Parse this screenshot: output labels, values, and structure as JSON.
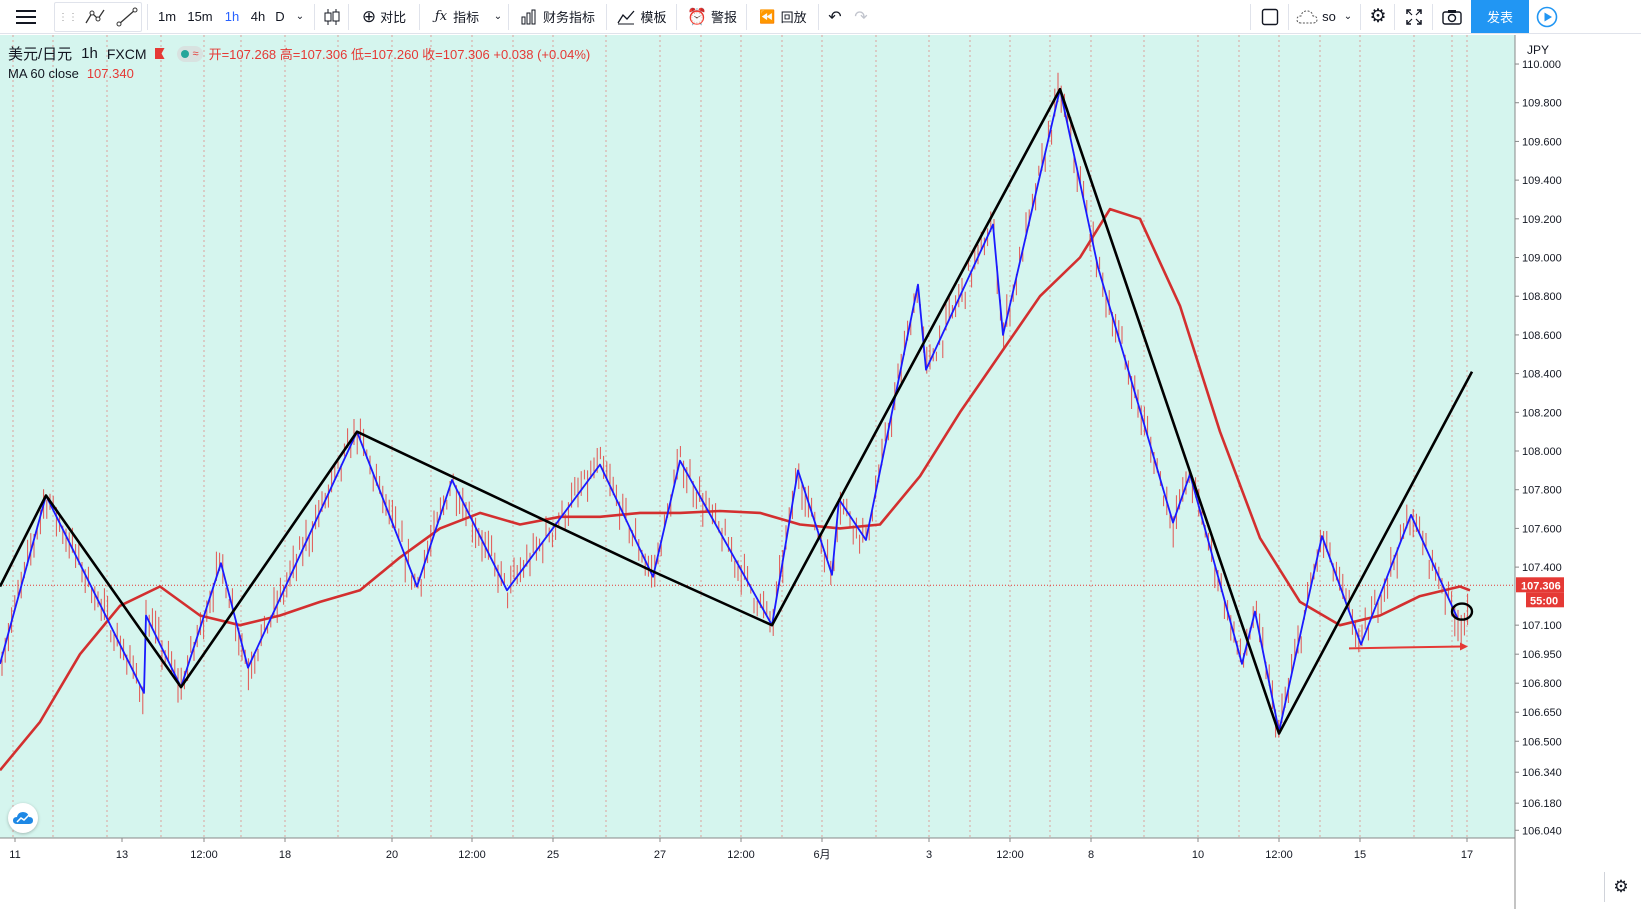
{
  "toolbar": {
    "intervals": [
      "1m",
      "15m",
      "1h",
      "4h",
      "D"
    ],
    "active_interval": "1h",
    "compare_label": "对比",
    "indicators_label": "指标",
    "financials_label": "财务指标",
    "templates_label": "模板",
    "alert_label": "警报",
    "replay_label": "回放",
    "layout_name": "so",
    "publish_label": "发表"
  },
  "legend": {
    "symbol": "美元/日元",
    "interval": "1h",
    "exchange": "FXCM",
    "ohlc_text": "开=107.268 高=107.306 低=107.260 收=107.306 +0.038 (+0.04%)",
    "ma_label": "MA 60 close",
    "ma_value": "107.340"
  },
  "colors": {
    "background": "#d5f5ee",
    "grid": "#e53935",
    "candle": "#e53935",
    "ma": "#d32f2f",
    "zigzag_minor": "#1a1aff",
    "zigzag_major": "#000000",
    "price_tag": "#e53935"
  },
  "chart_data": {
    "type": "line",
    "title": "",
    "currency": "JPY",
    "x_tick_labels": [
      "11",
      "13",
      "12:00",
      "18",
      "20",
      "12:00",
      "25",
      "27",
      "12:00",
      "6月",
      "3",
      "12:00",
      "8",
      "10",
      "12:00",
      "15",
      "17"
    ],
    "ylim": [
      106.0,
      110.15
    ],
    "y_ticks": [
      110.0,
      109.8,
      109.6,
      109.4,
      109.2,
      109.0,
      108.8,
      108.6,
      108.4,
      108.2,
      108.0,
      107.8,
      107.6,
      107.4,
      107.1,
      106.95,
      106.8,
      106.65,
      106.5,
      106.34,
      106.18,
      106.04
    ],
    "y_tick_labels": [
      "110.000",
      "109.800",
      "109.600",
      "109.400",
      "109.200",
      "109.000",
      "108.800",
      "108.600",
      "108.400",
      "108.200",
      "108.000",
      "107.800",
      "107.600",
      "107.400",
      "107.100",
      "106.950",
      "106.800",
      "106.650",
      "106.500",
      "106.340",
      "106.180",
      "106.040"
    ],
    "current_price": 107.306,
    "current_price_label": "107.306",
    "countdown_label": "55:00",
    "series": [
      {
        "name": "MA 60 close",
        "x": [
          0,
          40,
          80,
          120,
          160,
          200,
          240,
          280,
          320,
          360,
          400,
          440,
          480,
          520,
          560,
          600,
          640,
          680,
          720,
          760,
          800,
          840,
          880,
          920,
          960,
          1000,
          1040,
          1080,
          1110,
          1140,
          1180,
          1220,
          1260,
          1300,
          1340,
          1380,
          1420,
          1460,
          1470
        ],
        "y": [
          106.35,
          106.6,
          106.95,
          107.2,
          107.3,
          107.15,
          107.1,
          107.15,
          107.22,
          107.28,
          107.45,
          107.6,
          107.68,
          107.62,
          107.66,
          107.66,
          107.68,
          107.68,
          107.69,
          107.68,
          107.62,
          107.6,
          107.62,
          107.87,
          108.2,
          108.5,
          108.8,
          109.0,
          109.25,
          109.2,
          108.75,
          108.1,
          107.55,
          107.22,
          107.1,
          107.15,
          107.25,
          107.3,
          107.28
        ]
      },
      {
        "name": "",
        "x": [
          0,
          46,
          144,
          146,
          181,
          221,
          248,
          357,
          417,
          452,
          507,
          600,
          653,
          680,
          772,
          798,
          832,
          839,
          866,
          918,
          926,
          993,
          1003,
          1060,
          1098,
          1173,
          1190,
          1242,
          1255,
          1279,
          1322,
          1361,
          1411,
          1458
        ],
        "y": [
          106.9,
          107.77,
          106.75,
          107.15,
          106.78,
          107.42,
          106.88,
          108.1,
          107.3,
          107.85,
          107.28,
          107.93,
          107.35,
          107.95,
          107.1,
          107.9,
          107.36,
          107.75,
          107.54,
          108.86,
          108.42,
          109.17,
          108.6,
          109.87,
          108.95,
          107.63,
          107.88,
          106.9,
          107.17,
          106.55,
          107.56,
          107.0,
          107.67,
          107.13
        ]
      },
      {
        "name": "",
        "x": [
          0,
          46,
          181,
          357,
          652,
          772,
          1060,
          1279,
          1472
        ],
        "y": [
          107.3,
          107.77,
          106.78,
          108.1,
          107.38,
          107.1,
          109.87,
          106.54,
          108.41
        ]
      }
    ],
    "annotation_arrow": {
      "x": [
        1349,
        1468
      ],
      "y": [
        106.98,
        106.99
      ]
    },
    "annotation_circle": {
      "x": 1462,
      "y": 107.17
    }
  }
}
